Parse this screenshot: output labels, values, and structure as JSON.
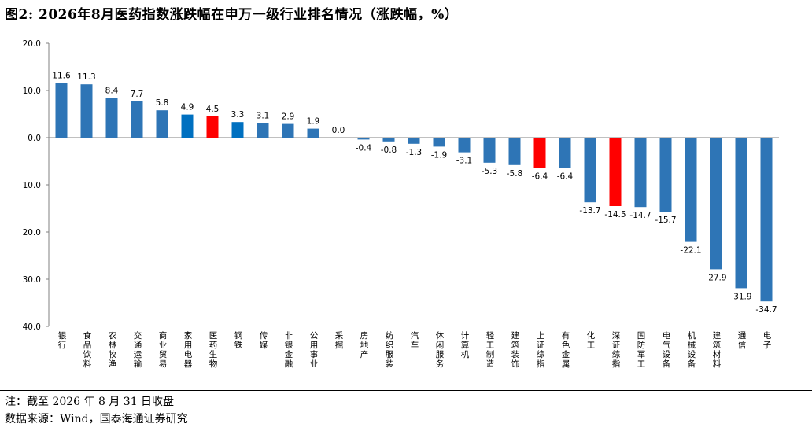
{
  "title": "图2: 2026年8月医药指数涨跌幅在申万一级行业排名情况（涨跌幅，%）",
  "notes": {
    "line1": "注：截至 2026 年 8 月 31 日收盘",
    "line2": "数据来源：Wind，国泰海通证券研究"
  },
  "colors": {
    "default": "#2E75B6",
    "highlight_blue": "#0070C0",
    "highlight_red": "#FF0000"
  },
  "chart_data": {
    "type": "bar",
    "title": "图2: 2026年8月医药指数涨跌幅在申万一级行业排名情况（涨跌幅，%）",
    "xlabel": "",
    "ylabel": "",
    "ylim": [
      -40,
      20
    ],
    "yticks": [
      20,
      10,
      0,
      -10,
      -20,
      -30,
      -40
    ],
    "ytick_labels": [
      "20.0",
      "10.0",
      "0.0",
      "10.0",
      "20.0",
      "30.0",
      "40.0"
    ],
    "grid": false,
    "legend": "none",
    "categories": [
      "银行",
      "食品饮料",
      "农林牧渔",
      "交通运输",
      "商业贸易",
      "家用电器",
      "医药生物",
      "钢铁",
      "传媒",
      "非银金融",
      "公用事业",
      "采掘",
      "房地产",
      "纺织服装",
      "汽车",
      "休闲服务",
      "计算机",
      "轻工制造",
      "建筑装饰",
      "上证综指",
      "有色金属",
      "化工",
      "深证综指",
      "国防军工",
      "电气设备",
      "机械设备",
      "建筑材料",
      "通信",
      "电子"
    ],
    "values": [
      11.6,
      11.3,
      8.4,
      7.7,
      5.8,
      4.9,
      4.5,
      3.3,
      3.1,
      2.9,
      1.9,
      0.0,
      -0.4,
      -0.8,
      -1.3,
      -1.9,
      -3.1,
      -5.3,
      -5.8,
      -6.4,
      -6.4,
      -13.7,
      -14.5,
      -14.7,
      -15.7,
      -22.1,
      -27.9,
      -31.9,
      -34.7
    ],
    "value_labels": [
      "11.6",
      "11.3",
      "8.4",
      "7.7",
      "5.8",
      "4.9",
      "4.5",
      "3.3",
      "3.1",
      "2.9",
      "1.9",
      "0.0",
      "-0.4",
      "-0.8",
      "-1.3",
      "-1.9",
      "-3.1",
      "-5.3",
      "-5.8",
      "-6.4",
      "-6.4",
      "-13.7",
      "-14.5",
      "-14.7",
      "-15.7",
      "-22.1",
      "-27.9",
      "-31.9",
      "-34.7"
    ],
    "bar_colors": [
      "#2E75B6",
      "#2E75B6",
      "#2E75B6",
      "#2E75B6",
      "#2E75B6",
      "#0070C0",
      "#FF0000",
      "#0070C0",
      "#2E75B6",
      "#2E75B6",
      "#2E75B6",
      "#2E75B6",
      "#2E75B6",
      "#2E75B6",
      "#2E75B6",
      "#2E75B6",
      "#2E75B6",
      "#2E75B6",
      "#2E75B6",
      "#FF0000",
      "#2E75B6",
      "#2E75B6",
      "#FF0000",
      "#2E75B6",
      "#2E75B6",
      "#2E75B6",
      "#2E75B6",
      "#2E75B6",
      "#2E75B6"
    ]
  }
}
